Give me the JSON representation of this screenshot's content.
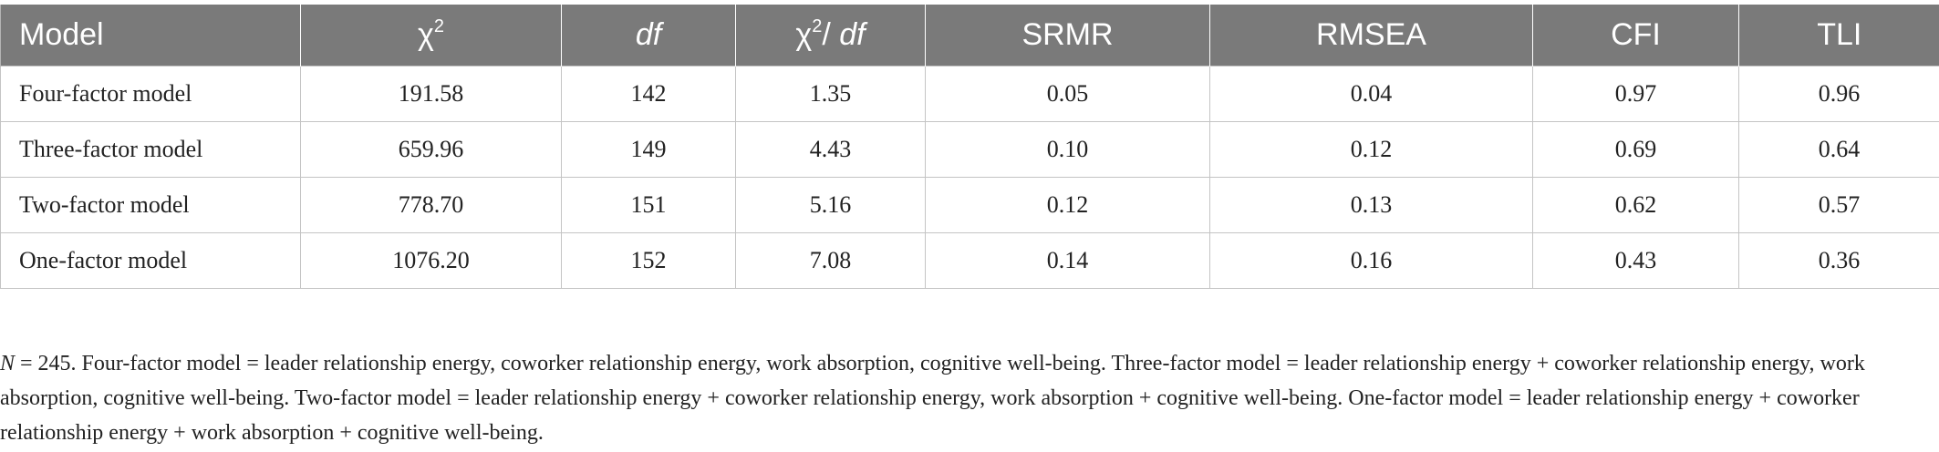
{
  "table": {
    "headers": {
      "model": "Model",
      "chi_symbol": "χ",
      "chi_sup": "2",
      "df": "df",
      "ratio_chi": "χ",
      "ratio_sup": "2",
      "ratio_slash": "/ ",
      "ratio_df": "df",
      "srmr": "SRMR",
      "rmsea": "RMSEA",
      "cfi": "CFI",
      "tli": "TLI"
    },
    "header_color": "#7a7a7a",
    "rows": [
      {
        "model": "Four-factor model",
        "chi2": "191.58",
        "df": "142",
        "ratio": "1.35",
        "srmr": "0.05",
        "rmsea": "0.04",
        "cfi": "0.97",
        "tli": "0.96"
      },
      {
        "model": "Three-factor model",
        "chi2": "659.96",
        "df": "149",
        "ratio": "4.43",
        "srmr": "0.10",
        "rmsea": "0.12",
        "cfi": "0.69",
        "tli": "0.64"
      },
      {
        "model": "Two-factor model",
        "chi2": "778.70",
        "df": "151",
        "ratio": "5.16",
        "srmr": "0.12",
        "rmsea": "0.13",
        "cfi": "0.62",
        "tli": "0.57"
      },
      {
        "model": "One-factor model",
        "chi2": "1076.20",
        "df": "152",
        "ratio": "7.08",
        "srmr": "0.14",
        "rmsea": "0.16",
        "cfi": "0.43",
        "tli": "0.36"
      }
    ]
  },
  "footnote": {
    "n_label": "N",
    "text": " = 245. Four-factor model = leader relationship energy, coworker relationship energy, work absorption, cognitive well-being. Three-factor model = leader relationship energy + coworker relationship energy, work absorption, cognitive well-being. Two-factor model = leader relationship energy + coworker relationship energy, work absorption + cognitive well-being. One-factor model = leader relationship energy + coworker relationship energy + work absorption + cognitive well-being."
  }
}
